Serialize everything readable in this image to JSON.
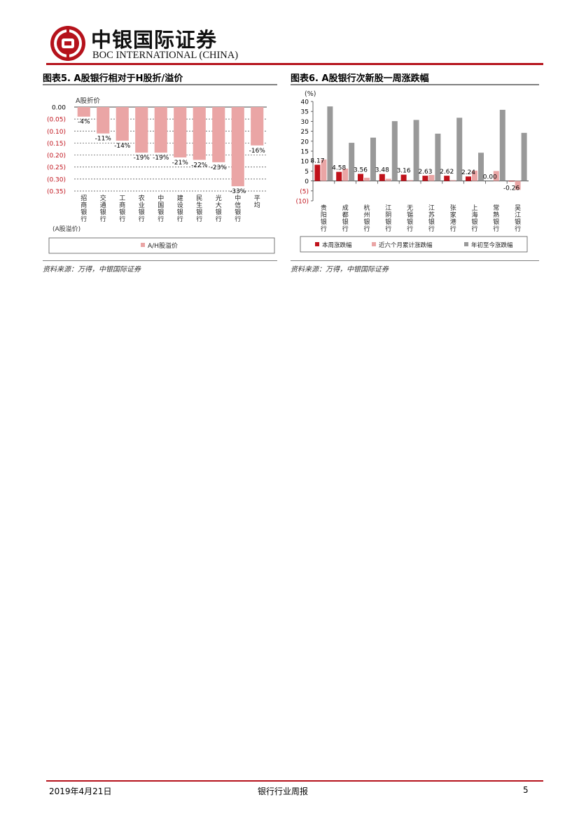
{
  "header": {
    "brand_cn": "中银国际证券",
    "brand_en": "BOC INTERNATIONAL (CHINA)",
    "brand_color": "#b5121b"
  },
  "figure_left": {
    "title": "图表5. A股银行相对于H股折/溢价",
    "source": "资料来源：万得，中银国际证券"
  },
  "figure_right": {
    "title": "图表6. A股银行次新股一周涨跌幅",
    "source": "资料来源：万得，中银国际证券"
  },
  "footer": {
    "date": "2019年4月21日",
    "report_title": "银行行业周报",
    "page": "5"
  },
  "chart_data": [
    {
      "type": "bar",
      "ylabel": "A股折价",
      "xlabel": "(A股溢价)",
      "ylim": [
        -0.35,
        0.0
      ],
      "yticks": [
        "0.00",
        "(0.05)",
        "(0.10)",
        "(0.15)",
        "(0.20)",
        "(0.25)",
        "(0.30)",
        "(0.35)"
      ],
      "categories": [
        "招商银行",
        "交通银行",
        "工商银行",
        "农业银行",
        "中国银行",
        "建设银行",
        "民生银行",
        "光大银行",
        "中信银行",
        "平均"
      ],
      "values": [
        -0.04,
        -0.11,
        -0.14,
        -0.19,
        -0.19,
        -0.21,
        -0.22,
        -0.23,
        -0.33,
        -0.16
      ],
      "data_labels": [
        "-4%",
        "-11%",
        "-14%",
        "-19%",
        "-19%",
        "-21%",
        "-22%",
        "-23%",
        "-33%",
        "-16%"
      ],
      "series": [
        {
          "name": "A/H股溢价",
          "color": "#eaa5a5"
        }
      ],
      "grid": true,
      "legend": "bottom"
    },
    {
      "type": "bar",
      "ylabel": "(%)",
      "ylim": [
        -10,
        40
      ],
      "yticks": [
        "40",
        "35",
        "30",
        "25",
        "20",
        "15",
        "10",
        "5",
        "0",
        "(5)",
        "(10)"
      ],
      "categories": [
        "贵阳银行",
        "成都银行",
        "杭州银行",
        "江阴银行",
        "无锡银行",
        "江苏银行",
        "张家港行",
        "上海银行",
        "常熟银行",
        "吴江银行"
      ],
      "series": [
        {
          "name": "本周涨跌幅",
          "color": "#c0121b",
          "values": [
            8.17,
            4.58,
            3.56,
            3.48,
            3.16,
            2.63,
            2.62,
            2.24,
            0.0,
            -0.26
          ]
        },
        {
          "name": "近六个月累计涨跌幅",
          "color": "#eaa5a5",
          "values": [
            10.8,
            6.2,
            1.6,
            1.1,
            0.4,
            3.0,
            0.4,
            5.2,
            5.0,
            -4.5
          ]
        },
        {
          "name": "年初至今涨跌幅",
          "color": "#999999",
          "values": [
            37.5,
            19.2,
            21.8,
            30.1,
            30.7,
            23.8,
            31.8,
            14.2,
            35.8,
            24.2
          ]
        }
      ],
      "data_labels": [
        "8.17",
        "4.58",
        "3.56",
        "3.48",
        "3.16",
        "2.63",
        "2.62",
        "2.24",
        "0.00",
        "-0.26"
      ],
      "legend": "bottom"
    }
  ]
}
